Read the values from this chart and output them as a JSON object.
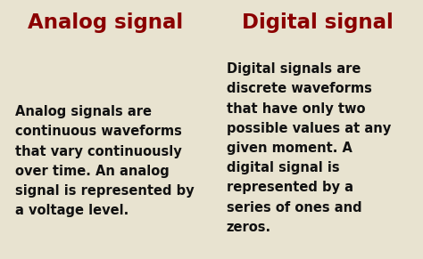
{
  "header_bg_color": "#D4C97A",
  "body_bg_color": "#E8E3D0",
  "header_text_color": "#8B0000",
  "body_text_color": "#111111",
  "divider_color": "#888888",
  "border_color": "#555555",
  "left_header": "Analog signal",
  "right_header": "Digital signal",
  "left_body": "Analog signals are\ncontinuous waveforms\nthat vary continuously\nover time. An analog\nsignal is represented by\na voltage level.",
  "right_body": "Digital signals are\ndiscrete waveforms\nthat have only two\npossible values at any\ngiven moment. A\ndigital signal is\nrepresented by a\nseries of ones and\nzeros.",
  "header_fontsize": 16.5,
  "body_fontsize": 10.5,
  "fig_width": 4.74,
  "fig_height": 2.91,
  "dpi": 100
}
